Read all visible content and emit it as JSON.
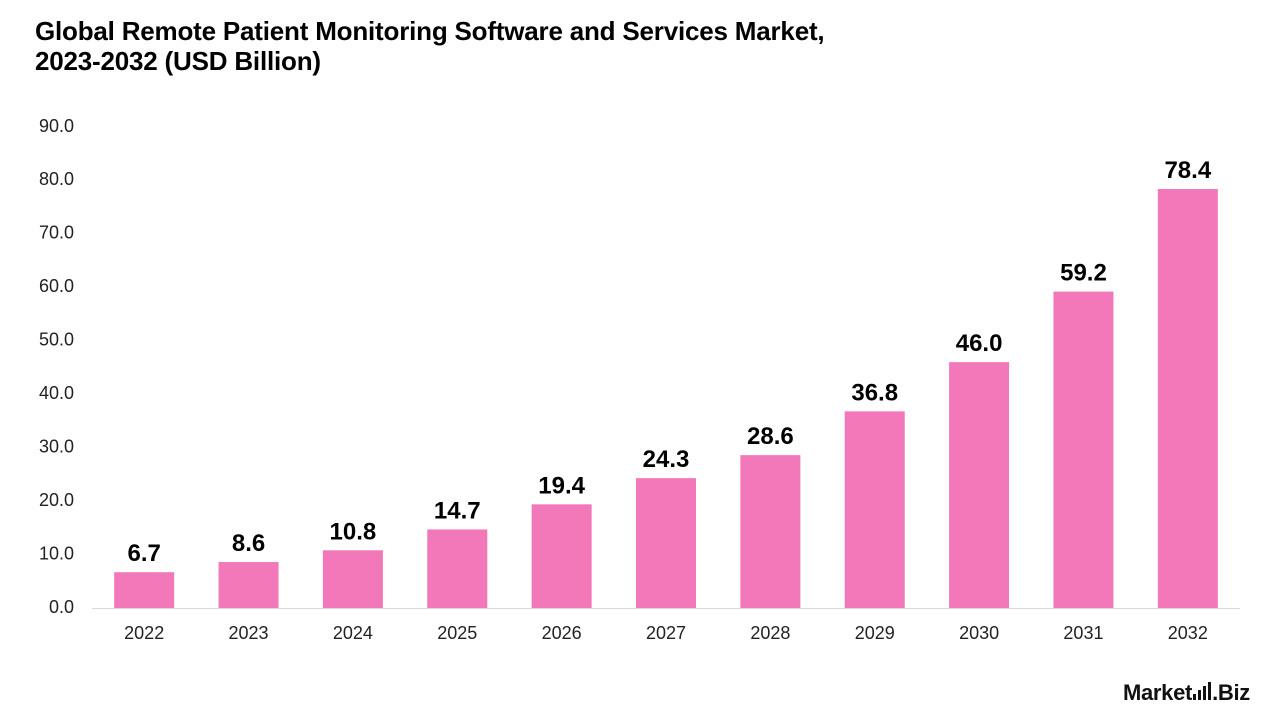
{
  "chart_data": {
    "type": "bar",
    "title": "Global Remote Patient Monitoring Software and Services Market, 2023-2032 (USD Billion)",
    "title_lines": [
      "Global Remote Patient Monitoring Software and Services Market,",
      "2023-2032 (USD Billion)"
    ],
    "categories": [
      "2022",
      "2023",
      "2024",
      "2025",
      "2026",
      "2027",
      "2028",
      "2029",
      "2030",
      "2031",
      "2032"
    ],
    "values": [
      6.7,
      8.6,
      10.8,
      14.7,
      19.4,
      24.3,
      28.6,
      36.8,
      46.0,
      59.2,
      78.4
    ],
    "data_labels": [
      "6.7",
      "8.6",
      "10.8",
      "14.7",
      "19.4",
      "24.3",
      "28.6",
      "36.8",
      "46.0",
      "59.2",
      "78.4"
    ],
    "xlabel": "",
    "ylabel": "",
    "ylim": [
      0,
      90
    ],
    "yticks": [
      "0.0",
      "10.0",
      "20.0",
      "30.0",
      "40.0",
      "50.0",
      "60.0",
      "70.0",
      "80.0",
      "90.0"
    ],
    "grid": false,
    "bar_color": "#f378b9",
    "axis_color": "#d9d9d9"
  },
  "brand": {
    "logo_text_left": "Market",
    "logo_text_right": "Biz"
  }
}
